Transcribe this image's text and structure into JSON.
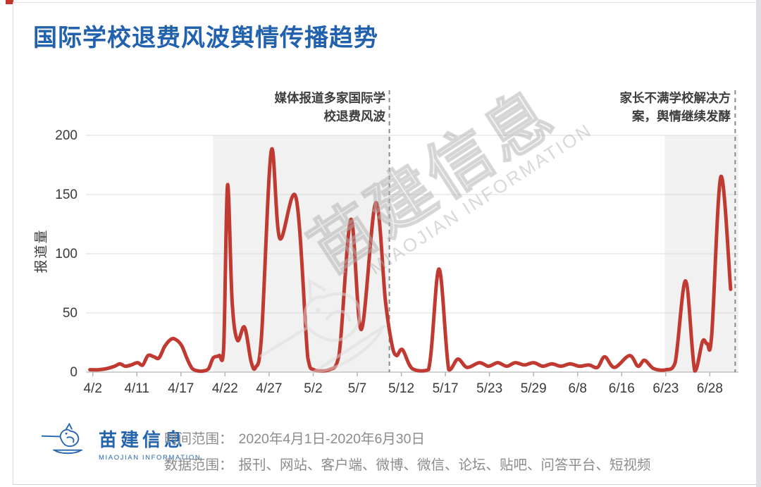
{
  "page": {
    "title": "国际学校退费风波舆情传播趋势"
  },
  "colors": {
    "title_blue": "#2161ad",
    "logo_blue": "#2565ae",
    "line_red": "#c03a31",
    "annotation_text": "#3d3d3d",
    "footer_gray": "#8c8c8c",
    "highlight_region": "#f1f1f1",
    "gridline": "#dcdcdc",
    "axis": "#c4c4c4",
    "dashed_marker": "#8a8a8a",
    "corner_mark_red": "#c0392b"
  },
  "chart_data": {
    "type": "line",
    "title": "国际学校退费风波舆情传播趋势",
    "xlabel": "",
    "ylabel": "报道量",
    "ylim": [
      0,
      200
    ],
    "y_ticks": [
      0,
      50,
      100,
      150,
      200
    ],
    "x_tick_labels": [
      "4/2",
      "4/11",
      "4/17",
      "4/22",
      "4/27",
      "5/2",
      "5/7",
      "5/12",
      "5/17",
      "5/23",
      "5/29",
      "6/8",
      "6/16",
      "6/23",
      "6/28"
    ],
    "grid": true,
    "legend": "none",
    "line_color": "#c03a31",
    "series": [
      {
        "name": "报道量",
        "points_note": "pairs of [x_percent_along_axis_from_4/1_to_6/30, value]",
        "points": [
          [
            0.6,
            2
          ],
          [
            1.9,
            2
          ],
          [
            3.2,
            3
          ],
          [
            4.4,
            5
          ],
          [
            5.2,
            7
          ],
          [
            6,
            5
          ],
          [
            6.9,
            6
          ],
          [
            7.9,
            8
          ],
          [
            8.7,
            6
          ],
          [
            9.5,
            14
          ],
          [
            10.4,
            13
          ],
          [
            11.2,
            12
          ],
          [
            12.1,
            22
          ],
          [
            13.1,
            28
          ],
          [
            13.9,
            27
          ],
          [
            14.7,
            22
          ],
          [
            15.6,
            10
          ],
          [
            16.3,
            3
          ],
          [
            17.2,
            1
          ],
          [
            18,
            1
          ],
          [
            18.8,
            3
          ],
          [
            19.5,
            12
          ],
          [
            20.4,
            14
          ],
          [
            21.1,
            20
          ],
          [
            21.7,
            158
          ],
          [
            22.4,
            60
          ],
          [
            23.2,
            27
          ],
          [
            24.3,
            38
          ],
          [
            25.3,
            9
          ],
          [
            26,
            4
          ],
          [
            26.9,
            30
          ],
          [
            28.4,
            187
          ],
          [
            29.7,
            113
          ],
          [
            32.2,
            147
          ],
          [
            34,
            12
          ],
          [
            34.9,
            2
          ],
          [
            37.3,
            2
          ],
          [
            38.8,
            15
          ],
          [
            40.6,
            129
          ],
          [
            42.2,
            36
          ],
          [
            44.4,
            143
          ],
          [
            45.9,
            60
          ],
          [
            46.9,
            23
          ],
          [
            47.6,
            14
          ],
          [
            48.5,
            19
          ],
          [
            50,
            3
          ],
          [
            52.5,
            2
          ],
          [
            54.1,
            87
          ],
          [
            55.6,
            2
          ],
          [
            57,
            11
          ],
          [
            58.4,
            4
          ],
          [
            60.3,
            8
          ],
          [
            61.7,
            5
          ],
          [
            63.1,
            8
          ],
          [
            64.5,
            5
          ],
          [
            65.8,
            8
          ],
          [
            67.2,
            6
          ],
          [
            68.6,
            8
          ],
          [
            70,
            5
          ],
          [
            71.4,
            7
          ],
          [
            72.8,
            5
          ],
          [
            74.2,
            7
          ],
          [
            75.6,
            5
          ],
          [
            77.1,
            6
          ],
          [
            78.4,
            4
          ],
          [
            79.5,
            13
          ],
          [
            81,
            4
          ],
          [
            83.3,
            14
          ],
          [
            84.6,
            5
          ],
          [
            85.6,
            10
          ],
          [
            87,
            3
          ],
          [
            88.9,
            2
          ],
          [
            90.3,
            8
          ],
          [
            91.9,
            77
          ],
          [
            93.3,
            1
          ],
          [
            94.5,
            26
          ],
          [
            95.2,
            24
          ],
          [
            95.9,
            31
          ],
          [
            97.3,
            165
          ],
          [
            98.8,
            70
          ]
        ]
      }
    ],
    "annotations": [
      {
        "text": "媒体报道多家国际学校退费风波",
        "line1": "媒体报道多家国际学",
        "line2": "校退费风波",
        "x_fraction": 46.5
      },
      {
        "text": "家长不满学校解决方案，舆情继续发酵",
        "line1": "家长不满学校解决方",
        "line2": "案，舆情继续发酵",
        "x_fraction": 99.5
      }
    ],
    "highlight_regions": [
      {
        "from": 19.5,
        "to": 46.5
      },
      {
        "from": 88.7,
        "to": 100
      }
    ]
  },
  "watermark": {
    "cn": "苗建信息",
    "en": "MIAOJIAN INFORMATION"
  },
  "footer": {
    "logo_cn": "苗建信息",
    "logo_en": "MIAOJIAN INFORMATION",
    "time_label": "时间范围：",
    "time_value": "2020年4月1日-2020年6月30日",
    "data_label": "数据范围：",
    "data_value": "报刊、网站、客户端、微博、微信、论坛、贴吧、问答平台、短视频"
  }
}
